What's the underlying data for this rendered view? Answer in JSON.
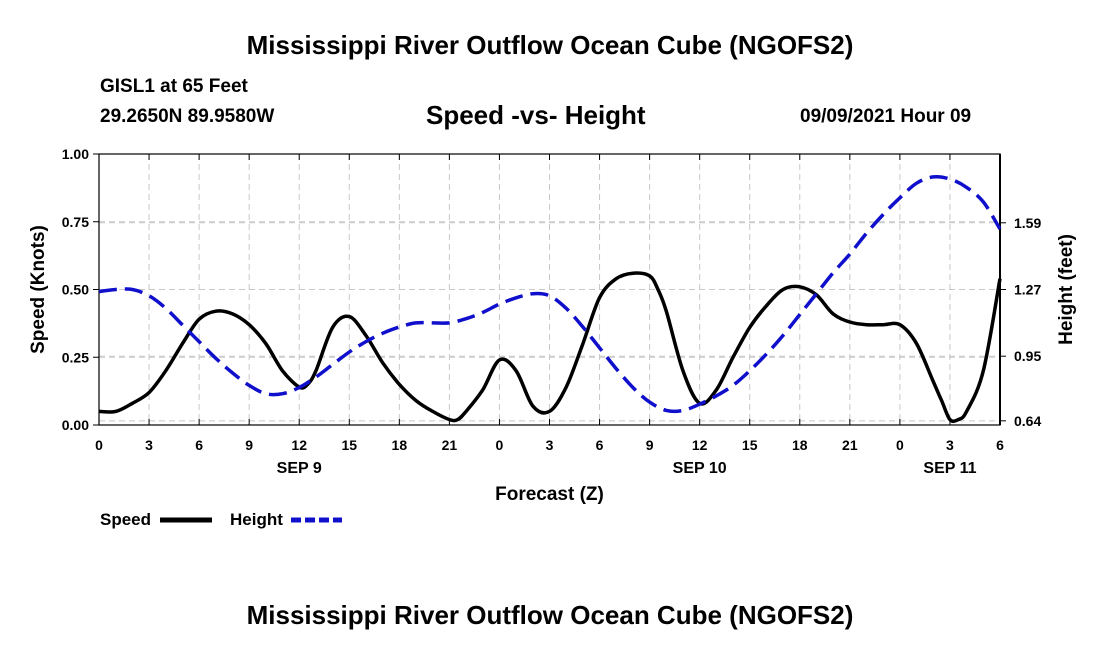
{
  "header": {
    "title_top": "Mississippi River Outflow Ocean Cube (NGOFS2)",
    "station": "GISL1 at 65 Feet",
    "coords": "29.2650N  89.9580W",
    "chart_title": "Speed -vs- Height",
    "datetime": "09/09/2021 Hour 09",
    "title_bottom": "Mississippi River Outflow Ocean Cube (NGOFS2)"
  },
  "legend": {
    "speed_label": "Speed",
    "height_label": "Height"
  },
  "colors": {
    "speed": "#000000",
    "height": "#1010cc",
    "grid": "#c8c8c8"
  },
  "chart_data": {
    "type": "line",
    "title": "Speed -vs- Height",
    "xlabel": "Forecast (Z)",
    "ylabel_left": "Speed (Knots)",
    "ylabel_right": "Height (feet)",
    "x_range_hours": [
      0,
      54
    ],
    "x_ticks": [
      {
        "h": 0,
        "label": "0"
      },
      {
        "h": 3,
        "label": "3"
      },
      {
        "h": 6,
        "label": "6"
      },
      {
        "h": 9,
        "label": "9"
      },
      {
        "h": 12,
        "label": "12"
      },
      {
        "h": 15,
        "label": "15"
      },
      {
        "h": 18,
        "label": "18"
      },
      {
        "h": 21,
        "label": "21"
      },
      {
        "h": 24,
        "label": "0"
      },
      {
        "h": 27,
        "label": "3"
      },
      {
        "h": 30,
        "label": "6"
      },
      {
        "h": 33,
        "label": "9"
      },
      {
        "h": 36,
        "label": "12"
      },
      {
        "h": 39,
        "label": "15"
      },
      {
        "h": 42,
        "label": "18"
      },
      {
        "h": 45,
        "label": "21"
      },
      {
        "h": 48,
        "label": "0"
      },
      {
        "h": 51,
        "label": "3"
      },
      {
        "h": 54,
        "label": "6"
      }
    ],
    "day_labels": [
      {
        "h": 12,
        "label": "SEP 9"
      },
      {
        "h": 36,
        "label": "SEP 10"
      },
      {
        "h": 51,
        "label": "SEP 11"
      }
    ],
    "left_axis": {
      "min": 0,
      "max": 1,
      "ticks": [
        "0.00",
        "0.25",
        "0.50",
        "0.75",
        "1.00"
      ],
      "tick_values": [
        0,
        0.25,
        0.5,
        0.75,
        1.0
      ]
    },
    "right_axis": {
      "min": 0.62,
      "max": 1.92,
      "ticks": [
        "0.64",
        "0.95",
        "1.27",
        "1.59"
      ],
      "tick_values": [
        0.64,
        0.95,
        1.27,
        1.59
      ]
    },
    "series": [
      {
        "name": "Speed",
        "axis": "left",
        "style": "solid",
        "x": [
          0,
          1,
          2,
          3,
          4,
          5,
          6,
          7,
          8,
          9,
          10,
          11,
          12,
          12.5,
          13,
          14,
          15,
          16,
          17,
          18,
          19,
          20,
          21,
          21.5,
          22,
          23,
          24,
          25,
          26,
          27,
          28,
          29,
          30,
          31,
          32,
          33,
          33.5,
          34,
          35,
          36,
          37,
          38,
          39,
          40,
          41,
          42,
          43,
          44,
          45,
          46,
          47,
          48,
          49,
          50,
          50.5,
          51,
          51.5,
          52,
          53,
          54
        ],
        "values": [
          0.05,
          0.05,
          0.08,
          0.12,
          0.2,
          0.3,
          0.39,
          0.42,
          0.41,
          0.37,
          0.3,
          0.2,
          0.14,
          0.15,
          0.2,
          0.36,
          0.4,
          0.33,
          0.23,
          0.15,
          0.09,
          0.05,
          0.02,
          0.02,
          0.05,
          0.13,
          0.24,
          0.2,
          0.07,
          0.05,
          0.14,
          0.3,
          0.47,
          0.54,
          0.56,
          0.55,
          0.5,
          0.42,
          0.2,
          0.08,
          0.13,
          0.25,
          0.36,
          0.44,
          0.5,
          0.51,
          0.48,
          0.41,
          0.38,
          0.37,
          0.37,
          0.37,
          0.3,
          0.16,
          0.09,
          0.02,
          0.02,
          0.05,
          0.2,
          0.54
        ]
      },
      {
        "name": "Height",
        "axis": "right",
        "style": "dashed",
        "x": [
          0,
          1,
          2,
          3,
          4,
          5,
          6,
          7,
          8,
          9,
          10,
          11,
          12,
          13,
          14,
          15,
          16,
          17,
          18,
          19,
          20,
          21,
          22,
          23,
          24,
          25,
          26,
          27,
          28,
          29,
          30,
          31,
          32,
          33,
          34,
          35,
          36,
          37,
          38,
          39,
          40,
          41,
          42,
          43,
          44,
          45,
          46,
          47,
          48,
          49,
          50,
          51,
          52,
          53,
          54
        ],
        "values": [
          1.26,
          1.27,
          1.27,
          1.24,
          1.18,
          1.1,
          1.02,
          0.94,
          0.87,
          0.81,
          0.77,
          0.77,
          0.8,
          0.85,
          0.91,
          0.97,
          1.02,
          1.06,
          1.09,
          1.11,
          1.11,
          1.11,
          1.13,
          1.16,
          1.2,
          1.23,
          1.25,
          1.24,
          1.18,
          1.09,
          0.99,
          0.89,
          0.8,
          0.73,
          0.69,
          0.69,
          0.72,
          0.76,
          0.81,
          0.88,
          0.96,
          1.05,
          1.15,
          1.25,
          1.35,
          1.44,
          1.54,
          1.63,
          1.71,
          1.78,
          1.81,
          1.8,
          1.76,
          1.69,
          1.56
        ]
      }
    ]
  }
}
